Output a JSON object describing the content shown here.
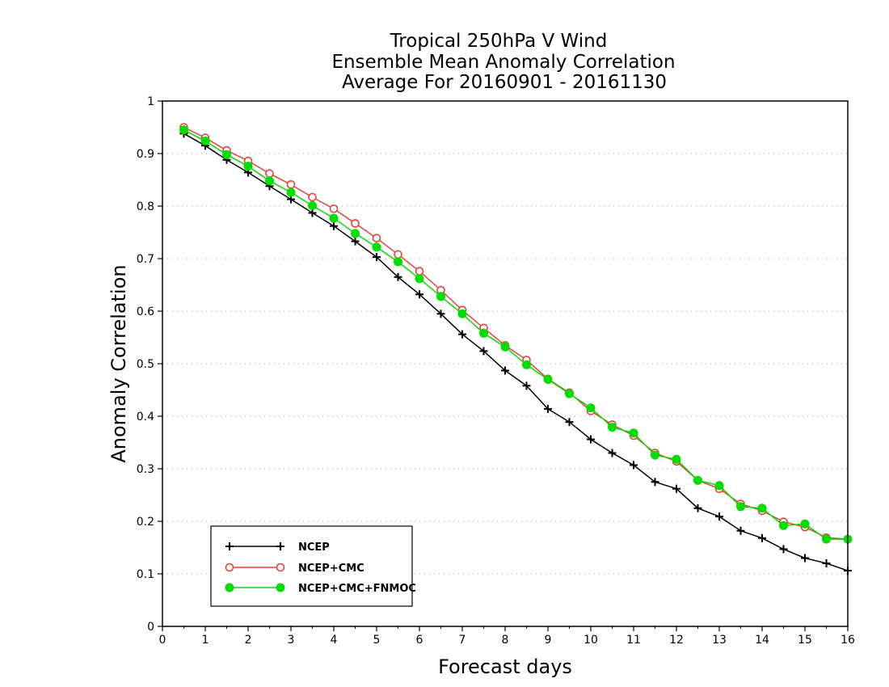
{
  "chart_data": {
    "type": "line",
    "title": [
      "Tropical 250hPa V Wind",
      "Ensemble Mean Anomaly Correlation",
      "Average For 20160901 - 20161130"
    ],
    "xlabel": "Forecast days",
    "ylabel": "Anomaly Correlation",
    "xlim": [
      0,
      16
    ],
    "ylim": [
      0,
      1
    ],
    "xticks": [
      "0",
      "1",
      "2",
      "3",
      "4",
      "5",
      "6",
      "7",
      "8",
      "9",
      "10",
      "11",
      "12",
      "13",
      "14",
      "15",
      "16"
    ],
    "yticks": [
      "0",
      "0.1",
      "0.2",
      "0.3",
      "0.4",
      "0.5",
      "0.6",
      "0.7",
      "0.8",
      "0.9",
      "1"
    ],
    "grid": "horizontal-dotted",
    "legend_position": "bottom-left",
    "x": [
      0.5,
      1,
      1.5,
      2,
      2.5,
      3,
      3.5,
      4,
      4.5,
      5,
      5.5,
      6,
      6.5,
      7,
      7.5,
      8,
      8.5,
      9,
      9.5,
      10,
      10.5,
      11,
      11.5,
      12,
      12.5,
      13,
      13.5,
      14,
      14.5,
      15,
      15.5,
      16
    ],
    "series": [
      {
        "name": "NCEP",
        "color": "#000000",
        "marker": "plus",
        "values": [
          0.938,
          0.915,
          0.888,
          0.864,
          0.838,
          0.813,
          0.787,
          0.762,
          0.733,
          0.703,
          0.665,
          0.632,
          0.595,
          0.556,
          0.524,
          0.487,
          0.458,
          0.414,
          0.389,
          0.356,
          0.33,
          0.307,
          0.275,
          0.262,
          0.225,
          0.209,
          0.182,
          0.168,
          0.147,
          0.13,
          0.12,
          0.106
        ]
      },
      {
        "name": "NCEP+CMC",
        "color": "#e8403c",
        "marker": "open-circle",
        "values": [
          0.95,
          0.93,
          0.906,
          0.886,
          0.862,
          0.841,
          0.817,
          0.795,
          0.767,
          0.739,
          0.708,
          0.676,
          0.64,
          0.602,
          0.568,
          0.535,
          0.507,
          0.471,
          0.445,
          0.41,
          0.384,
          0.363,
          0.33,
          0.314,
          0.278,
          0.262,
          0.233,
          0.22,
          0.199,
          0.189,
          0.169,
          0.166
        ]
      },
      {
        "name": "NCEP+CMC+FNMOC",
        "color": "#00dd00",
        "marker": "filled-circle",
        "values": [
          0.945,
          0.924,
          0.898,
          0.876,
          0.848,
          0.826,
          0.801,
          0.777,
          0.748,
          0.722,
          0.694,
          0.662,
          0.628,
          0.595,
          0.558,
          0.532,
          0.498,
          0.47,
          0.443,
          0.416,
          0.379,
          0.368,
          0.326,
          0.318,
          0.278,
          0.268,
          0.228,
          0.225,
          0.192,
          0.195,
          0.166,
          0.166
        ]
      }
    ]
  }
}
